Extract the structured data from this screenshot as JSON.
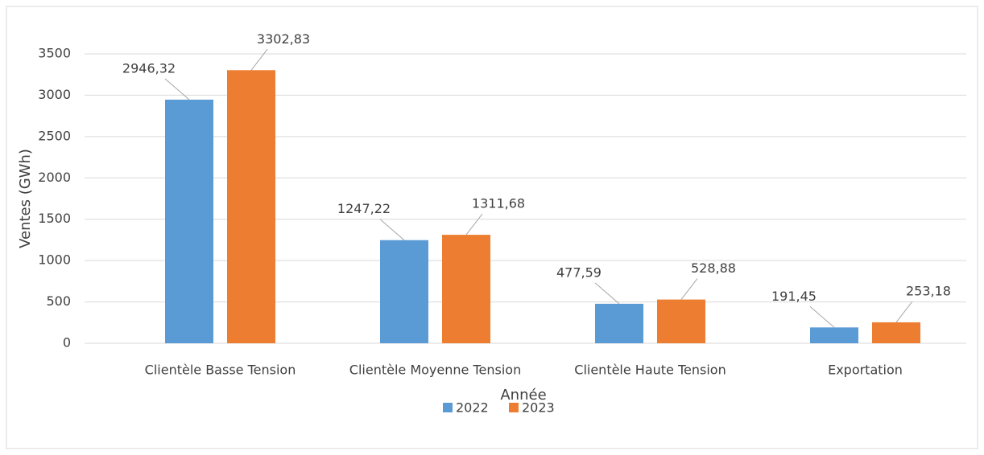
{
  "chart_data": {
    "type": "bar",
    "x_label": "Année",
    "y_label": "Ventes (GWh)",
    "categories": [
      "Clientèle Basse Tension",
      "Clientèle Moyenne Tension",
      "Clientèle Haute Tension",
      "Exportation"
    ],
    "series": [
      {
        "name": "2022",
        "color": "#5b9bd5",
        "values": [
          2946.32,
          1247.22,
          477.59,
          191.45
        ],
        "value_labels": [
          "2946,32",
          "1247,22",
          "477,59",
          "191,45"
        ]
      },
      {
        "name": "2023",
        "color": "#ed7d31",
        "values": [
          3302.83,
          1311.68,
          528.88,
          253.18
        ],
        "value_labels": [
          "3302,83",
          "1311,68",
          "528,88",
          "253,18"
        ]
      }
    ],
    "ylim": [
      0,
      3500
    ],
    "yticks": [
      0,
      500,
      1000,
      1500,
      2000,
      2500,
      3000,
      3500
    ],
    "grid": true,
    "legend": "bottom"
  }
}
